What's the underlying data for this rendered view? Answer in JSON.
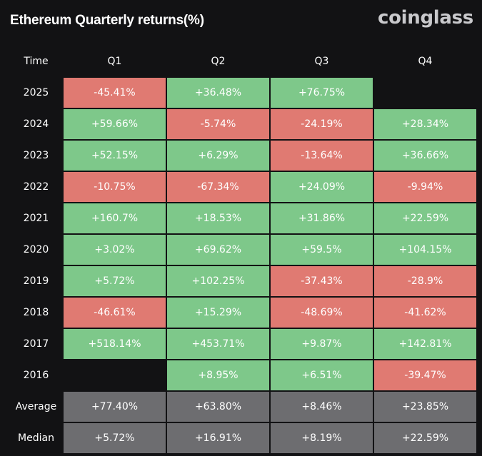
{
  "title": "Ethereum Quarterly returns(%)",
  "brand": "coinglass",
  "colors": {
    "background": "#121214",
    "positive": "#7ec88a",
    "negative": "#e07a72",
    "summary": "#6d6d70"
  },
  "chart_data": {
    "type": "table",
    "title": "Ethereum Quarterly returns(%)",
    "columns": [
      "Time",
      "Q1",
      "Q2",
      "Q3",
      "Q4"
    ],
    "rows": [
      {
        "label": "2025",
        "values": [
          "-45.41%",
          "+36.48%",
          "+76.75%",
          ""
        ]
      },
      {
        "label": "2024",
        "values": [
          "+59.66%",
          "-5.74%",
          "-24.19%",
          "+28.34%"
        ]
      },
      {
        "label": "2023",
        "values": [
          "+52.15%",
          "+6.29%",
          "-13.64%",
          "+36.66%"
        ]
      },
      {
        "label": "2022",
        "values": [
          "-10.75%",
          "-67.34%",
          "+24.09%",
          "-9.94%"
        ]
      },
      {
        "label": "2021",
        "values": [
          "+160.7%",
          "+18.53%",
          "+31.86%",
          "+22.59%"
        ]
      },
      {
        "label": "2020",
        "values": [
          "+3.02%",
          "+69.62%",
          "+59.5%",
          "+104.15%"
        ]
      },
      {
        "label": "2019",
        "values": [
          "+5.72%",
          "+102.25%",
          "-37.43%",
          "-28.9%"
        ]
      },
      {
        "label": "2018",
        "values": [
          "-46.61%",
          "+15.29%",
          "-48.69%",
          "-41.62%"
        ]
      },
      {
        "label": "2017",
        "values": [
          "+518.14%",
          "+453.71%",
          "+9.87%",
          "+142.81%"
        ]
      },
      {
        "label": "2016",
        "values": [
          "",
          "+8.95%",
          "+6.51%",
          "-39.47%"
        ]
      }
    ],
    "summary": [
      {
        "label": "Average",
        "values": [
          "+77.40%",
          "+63.80%",
          "+8.46%",
          "+23.85%"
        ]
      },
      {
        "label": "Median",
        "values": [
          "+5.72%",
          "+16.91%",
          "+8.19%",
          "+22.59%"
        ]
      }
    ]
  }
}
